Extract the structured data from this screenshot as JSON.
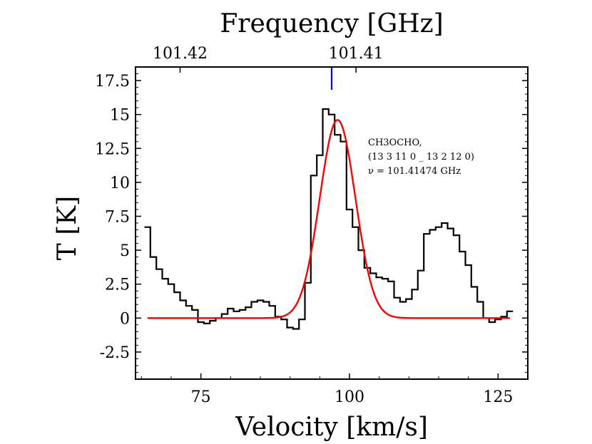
{
  "chart_data": {
    "type": "line",
    "xlabel": "Velocity [km/s]",
    "ylabel": "T [K]",
    "top_xlabel": "Frequency [GHz]",
    "xlim": [
      64,
      130
    ],
    "ylim": [
      -4.5,
      18.5
    ],
    "x_ticks": [
      75,
      100,
      125
    ],
    "x_tick_labels": [
      "75",
      "100",
      "125"
    ],
    "y_ticks": [
      -2.5,
      0,
      2.5,
      5,
      7.5,
      10,
      12.5,
      15,
      17.5
    ],
    "y_tick_labels": [
      "-2.5",
      "0",
      "2.5",
      "5",
      "7.5",
      "10",
      "12.5",
      "15",
      "17.5"
    ],
    "top_ticks": [
      {
        "velocity": 71.5,
        "label": "101.42"
      },
      {
        "velocity": 101.1,
        "label": "101.41"
      }
    ],
    "grid": false,
    "line_marker": {
      "velocity": 97.0,
      "color": "#0000ff"
    },
    "annotation": {
      "lines": [
        "CH3OCHO,",
        "(13 3 11 0 _ 13 2 12 0)",
        "ν = 101.41474 GHz"
      ]
    },
    "series": [
      {
        "style": "steps",
        "color": "#000000",
        "x": [
          66.0,
          67.0,
          68.0,
          69.0,
          70.0,
          71.0,
          72.0,
          73.0,
          74.0,
          75.0,
          76.0,
          77.0,
          78.0,
          79.0,
          80.0,
          81.0,
          82.0,
          83.0,
          84.0,
          85.0,
          86.0,
          87.0,
          88.0,
          89.0,
          90.0,
          91.0,
          92.0,
          93.0,
          94.0,
          95.0,
          96.0,
          97.0,
          98.0,
          99.0,
          100.0,
          101.0,
          102.0,
          103.0,
          104.0,
          105.0,
          106.0,
          107.0,
          108.0,
          109.0,
          110.0,
          111.0,
          112.0,
          113.0,
          114.0,
          115.0,
          116.0,
          117.0,
          118.0,
          119.0,
          120.0,
          121.0,
          122.0,
          123.0,
          124.0,
          125.0,
          126.0,
          127.0
        ],
        "y": [
          6.7,
          4.5,
          3.6,
          2.9,
          2.5,
          1.9,
          1.3,
          0.9,
          0.6,
          -0.3,
          -0.4,
          -0.2,
          0.0,
          0.3,
          0.7,
          0.5,
          0.6,
          0.8,
          1.2,
          1.3,
          1.2,
          0.9,
          0.1,
          -0.1,
          -0.7,
          -0.8,
          -0.1,
          2.6,
          10.5,
          12.0,
          15.4,
          15.0,
          13.5,
          13.0,
          8.0,
          6.7,
          5.0,
          3.7,
          3.3,
          3.0,
          2.9,
          2.7,
          1.5,
          1.2,
          1.4,
          2.1,
          3.5,
          6.2,
          6.5,
          6.7,
          7.0,
          6.6,
          6.1,
          4.9,
          3.9,
          2.3,
          1.2,
          0.0,
          -0.3,
          -0.1,
          0.1,
          0.5
        ]
      },
      {
        "style": "gaussian",
        "color": "#ff0000",
        "amplitude": 14.6,
        "center": 98.0,
        "sigma": 3.0,
        "x_range": [
          66,
          127
        ]
      }
    ]
  }
}
